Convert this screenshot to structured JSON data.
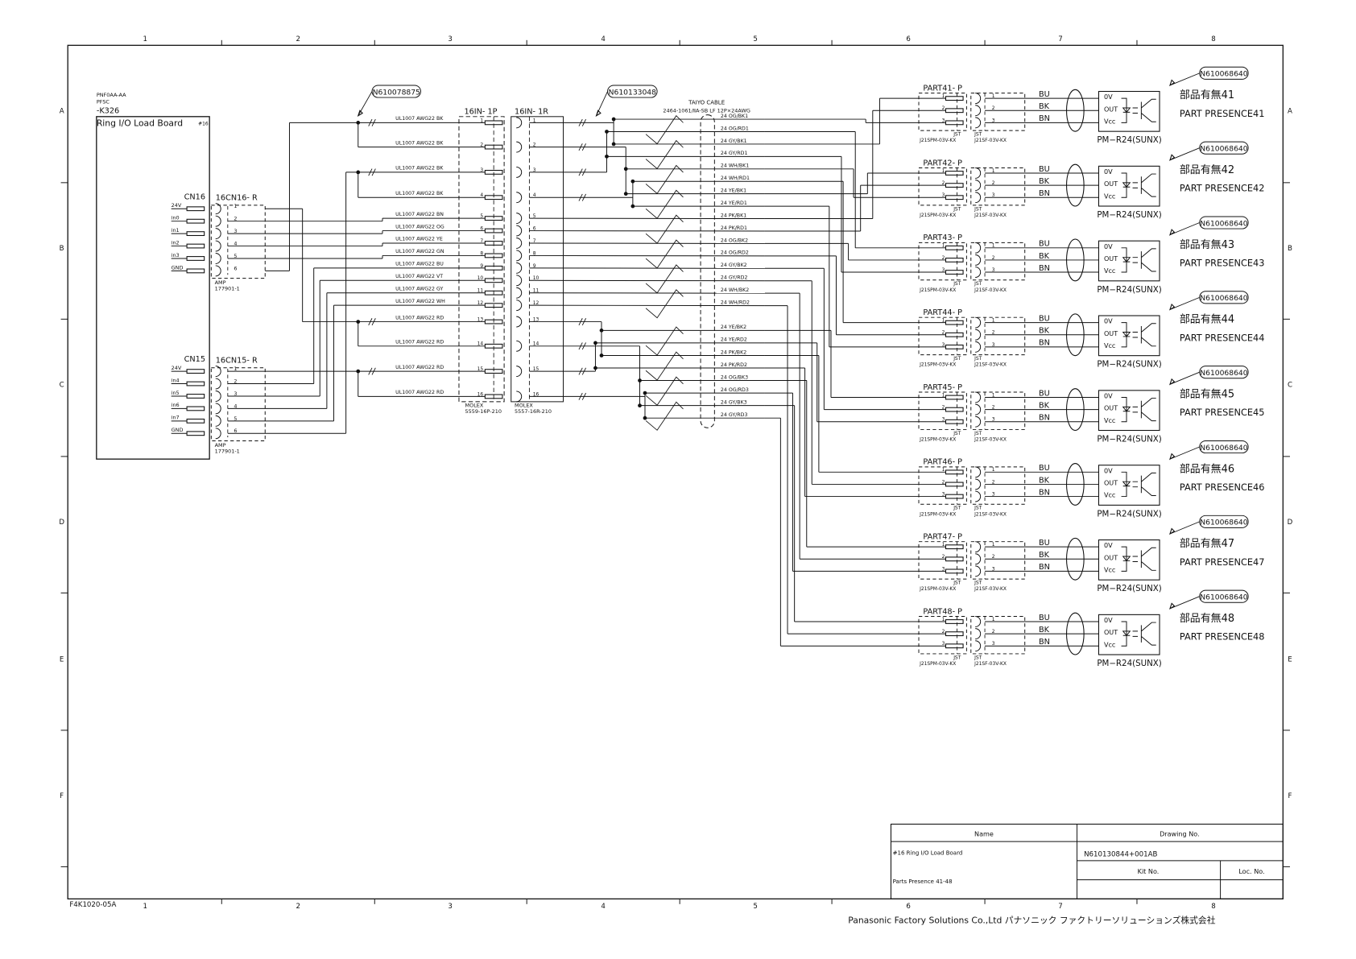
{
  "frame": {
    "columns": [
      "1",
      "2",
      "3",
      "4",
      "5",
      "6",
      "7",
      "8"
    ],
    "rows": [
      "A",
      "B",
      "C",
      "D",
      "E",
      "F"
    ],
    "form_number": "F4K1020-05A"
  },
  "board": {
    "part_no": "PNF0AA-AA",
    "maker": "PFSC",
    "ref": "-K326",
    "title": "Ring I/O Load Board",
    "number": "#16"
  },
  "cn16": {
    "label": "CN16",
    "mate_label": "16CN16- R",
    "pins": [
      "24V",
      "in0",
      "in1",
      "in2",
      "in3",
      "GND"
    ],
    "pin_numbers": [
      "1",
      "2",
      "3",
      "4",
      "5",
      "6"
    ],
    "maker": "AMP",
    "part": "177901-1"
  },
  "cn15": {
    "label": "CN15",
    "mate_label": "16CN15- R",
    "pins": [
      "24V",
      "in4",
      "in5",
      "in6",
      "in7",
      "GND"
    ],
    "pin_numbers": [
      "1",
      "2",
      "3",
      "4",
      "5",
      "6"
    ],
    "maker": "AMP",
    "part": "177901-1"
  },
  "callouts": {
    "harness_1": "N610078875",
    "harness_2": "N610133048"
  },
  "wire_labels": [
    "UL1007  AWG22  BK",
    "UL1007  AWG22  BK",
    "UL1007  AWG22  BK",
    "UL1007  AWG22  BK",
    "UL1007  AWG22  BN",
    "UL1007  AWG22  OG",
    "UL1007  AWG22  YE",
    "UL1007  AWG22  GN",
    "UL1007  AWG22  BU",
    "UL1007  AWG22  VT",
    "UL1007  AWG22  GY",
    "UL1007  AWG22  WH",
    "UL1007  AWG22  RD",
    "UL1007  AWG22  RD",
    "UL1007  AWG22  RD",
    "UL1007  AWG22  RD"
  ],
  "plug_16in": {
    "label": "16IN- 1P",
    "maker": "MOLEX",
    "part": "5559-16P-210",
    "pin_numbers": [
      "1",
      "2",
      "3",
      "4",
      "5",
      "6",
      "7",
      "8",
      "9",
      "10",
      "11",
      "12",
      "13",
      "14",
      "15",
      "16"
    ]
  },
  "receptacle_16in": {
    "label": "16IN- 1R",
    "maker": "MOLEX",
    "part": "5557-16R-210"
  },
  "cable": {
    "name": "TAIYO CABLE",
    "spec": "2464-1061/ⅡA-SB LF 12P×24AWG",
    "conductors": [
      "24  OG/BK1",
      "24  OG/RD1",
      "24  GY/BK1",
      "24  GY/RD1",
      "24  WH/BK1",
      "24  WH/RD1",
      "24  YE/BK1",
      "24  YE/RD1",
      "24  PK/BK1",
      "24  PK/RD1",
      "24  OG/BK2",
      "24  OG/RD2",
      "24  GY/BK2",
      "24  GY/RD2",
      "24  WH/BK2",
      "24  WH/RD2",
      "24  YE/BK2",
      "24  YE/RD2",
      "24  PK/BK2",
      "24  PK/RD2",
      "24  OG/BK3",
      "24  OG/RD3",
      "24  GY/BK3",
      "24  GY/RD3"
    ]
  },
  "sensor_common": {
    "plug_maker": "JST",
    "plug_part": "J21SPM-03V-KX",
    "socket_maker": "JST",
    "socket_part": "J21SF-03V-KX",
    "pin_numbers": [
      "1",
      "2",
      "3"
    ],
    "wire_colors": [
      "BU",
      "BK",
      "BN"
    ],
    "terminals": [
      "0V",
      "OUT",
      "Vcc"
    ],
    "model": "PM−R24(SUNX)",
    "callout": "N610068640"
  },
  "sensors": [
    {
      "plug": "PART41- P",
      "name_jp": "部品有無41",
      "name_en": "PART  PRESENCE41"
    },
    {
      "plug": "PART42- P",
      "name_jp": "部品有無42",
      "name_en": "PART  PRESENCE42"
    },
    {
      "plug": "PART43- P",
      "name_jp": "部品有無43",
      "name_en": "PART  PRESENCE43"
    },
    {
      "plug": "PART44- P",
      "name_jp": "部品有無44",
      "name_en": "PART  PRESENCE44"
    },
    {
      "plug": "PART45- P",
      "name_jp": "部品有無45",
      "name_en": "PART  PRESENCE45"
    },
    {
      "plug": "PART46- P",
      "name_jp": "部品有無46",
      "name_en": "PART  PRESENCE46"
    },
    {
      "plug": "PART47- P",
      "name_jp": "部品有無47",
      "name_en": "PART  PRESENCE47"
    },
    {
      "plug": "PART48- P",
      "name_jp": "部品有無48",
      "name_en": "PART  PRESENCE48"
    }
  ],
  "title_block": {
    "name_header": "Name",
    "drawing_no_header": "Drawing No.",
    "name_line1": "#16 Ring I/O Load Board",
    "name_line2": "Parts Presence 41-48",
    "drawing_no": "N610130844+001AB",
    "kit_no_header": "Kit No.",
    "loc_no_header": "Loc. No.",
    "company": "Panasonic Factory Solutions Co.,Ltd パナソニック ファクトリーソリューションズ株式会社"
  }
}
